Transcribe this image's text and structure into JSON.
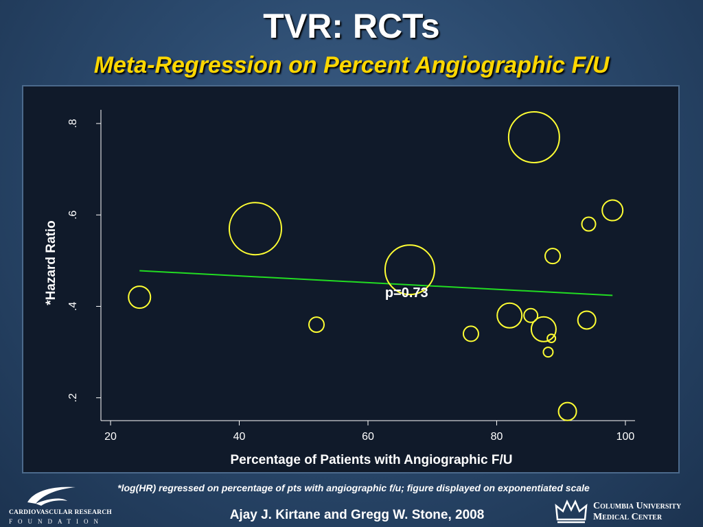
{
  "slide": {
    "title": "TVR: RCTs",
    "subtitle": "Meta-Regression on Percent Angiographic F/U",
    "footnote": "*log(HR) regressed on percentage of pts with angiographic f/u; figure displayed on exponentiated scale",
    "credit": "Ajay J. Kirtane and Gregg W. Stone, 2008"
  },
  "logos": {
    "crf_line1": "CARDIOVASCULAR RESEARCH",
    "crf_line2": "FOUNDATION",
    "columbia_line1": "Columbia University",
    "columbia_line2": "Medical Center"
  },
  "chart_data": {
    "type": "scatter",
    "xlabel": "Percentage of Patients with Angiographic F/U",
    "ylabel": "*Hazard Ratio",
    "xlim": [
      18.5,
      101.5
    ],
    "ylim": [
      0.15,
      0.83
    ],
    "xticks": [
      {
        "value": 20,
        "label": "20"
      },
      {
        "value": 40,
        "label": "40"
      },
      {
        "value": 60,
        "label": "60"
      },
      {
        "value": 80,
        "label": "80"
      },
      {
        "value": 100,
        "label": "100"
      }
    ],
    "yticks": [
      {
        "value": 0.2,
        "label": ".2"
      },
      {
        "value": 0.4,
        "label": ".4"
      },
      {
        "value": 0.6,
        "label": ".6"
      },
      {
        "value": 0.8,
        "label": ".8"
      }
    ],
    "points": [
      {
        "x": 24.5,
        "y": 0.42,
        "weight": 16
      },
      {
        "x": 42.5,
        "y": 0.57,
        "weight": 38
      },
      {
        "x": 52,
        "y": 0.36,
        "weight": 11
      },
      {
        "x": 66.5,
        "y": 0.48,
        "weight": 36
      },
      {
        "x": 76,
        "y": 0.34,
        "weight": 11
      },
      {
        "x": 82,
        "y": 0.38,
        "weight": 18
      },
      {
        "x": 85.3,
        "y": 0.38,
        "weight": 10
      },
      {
        "x": 85.8,
        "y": 0.77,
        "weight": 37
      },
      {
        "x": 87.3,
        "y": 0.35,
        "weight": 18
      },
      {
        "x": 88,
        "y": 0.3,
        "weight": 7
      },
      {
        "x": 88.5,
        "y": 0.33,
        "weight": 6
      },
      {
        "x": 88.7,
        "y": 0.51,
        "weight": 11
      },
      {
        "x": 91,
        "y": 0.17,
        "weight": 13
      },
      {
        "x": 94,
        "y": 0.37,
        "weight": 13
      },
      {
        "x": 94.3,
        "y": 0.58,
        "weight": 10
      },
      {
        "x": 98,
        "y": 0.61,
        "weight": 15
      }
    ],
    "fit_line": {
      "x": [
        24.5,
        98
      ],
      "y": [
        0.478,
        0.424
      ]
    },
    "annotation": {
      "text": "p=0.73",
      "x": 66,
      "y": 0.42
    },
    "colors": {
      "points": "#ffff33",
      "fit": "#22dd22",
      "axis": "#ffffff"
    }
  }
}
